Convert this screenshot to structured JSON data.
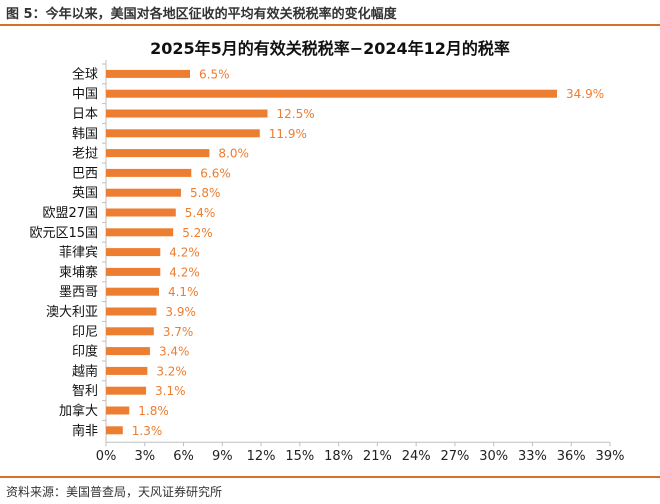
{
  "figure_caption": "图 5：今年以来，美国对各地区征收的平均有效关税税率的变化幅度",
  "source_note": "资料来源：美国普查局，天风证券研究所",
  "colors": {
    "bar": "#ED7D31",
    "label": "#ED7D31",
    "rule": "#D4722A",
    "axis": "#BFBFBF"
  },
  "chart_data": {
    "type": "bar",
    "orientation": "horizontal",
    "title": "2025年5月的有效关税税率−2024年12月的税率",
    "categories": [
      "全球",
      "中国",
      "日本",
      "韩国",
      "老挝",
      "巴西",
      "英国",
      "欧盟27国",
      "欧元区15国",
      "菲律宾",
      "柬埔寨",
      "墨西哥",
      "澳大利亚",
      "印尼",
      "印度",
      "越南",
      "智利",
      "加拿大",
      "南非"
    ],
    "values": [
      6.5,
      34.9,
      12.5,
      11.9,
      8.0,
      6.6,
      5.8,
      5.4,
      5.2,
      4.2,
      4.2,
      4.1,
      3.9,
      3.7,
      3.4,
      3.2,
      3.1,
      1.8,
      1.3
    ],
    "value_labels": [
      "6.5%",
      "34.9%",
      "12.5%",
      "11.9%",
      "8.0%",
      "6.6%",
      "5.8%",
      "5.4%",
      "5.2%",
      "4.2%",
      "4.2%",
      "4.1%",
      "3.9%",
      "3.7%",
      "3.4%",
      "3.2%",
      "3.1%",
      "1.8%",
      "1.3%"
    ],
    "xlim": [
      0,
      39
    ],
    "xticks": [
      0,
      3,
      6,
      9,
      12,
      15,
      18,
      21,
      24,
      27,
      30,
      33,
      36,
      39
    ],
    "xtick_labels": [
      "0%",
      "3%",
      "6%",
      "9%",
      "12%",
      "15%",
      "18%",
      "21%",
      "24%",
      "27%",
      "30%",
      "33%",
      "36%",
      "39%"
    ],
    "xlabel": "",
    "ylabel": "",
    "grid": false,
    "legend": "none"
  }
}
